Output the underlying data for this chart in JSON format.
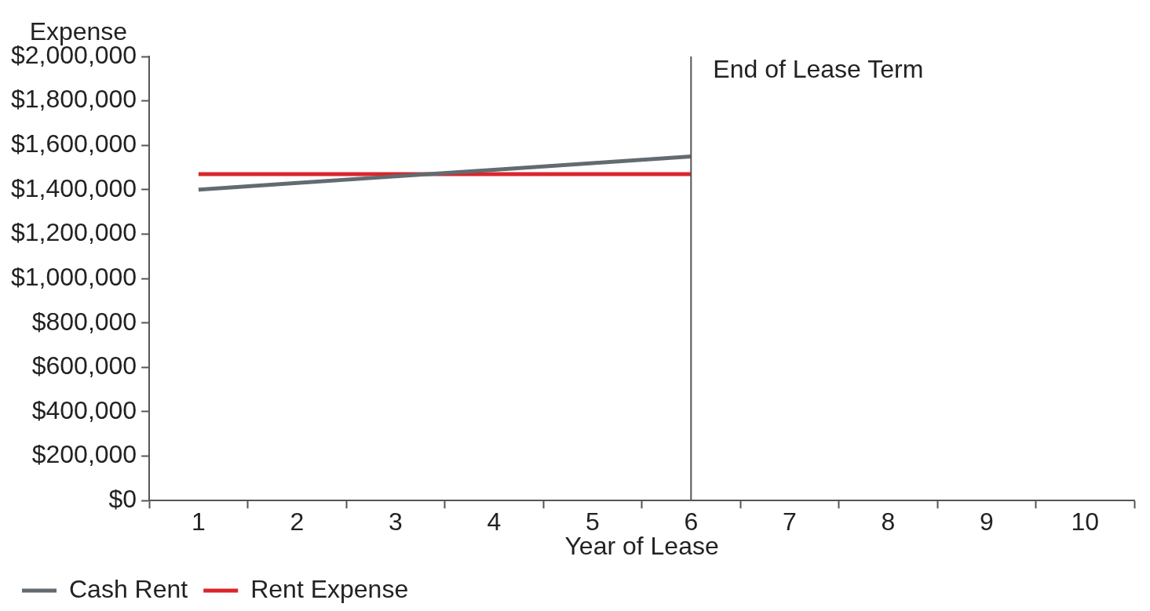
{
  "chart_data": {
    "type": "line",
    "ylabel": "Expense",
    "xlabel": "Year of Lease",
    "categories": [
      "1",
      "2",
      "3",
      "4",
      "5",
      "6",
      "7",
      "8",
      "9",
      "10"
    ],
    "series": [
      {
        "name": "Cash Rent",
        "color": "#636b70",
        "values": [
          1400000,
          1430000,
          1460000,
          1490000,
          1520000,
          1550000,
          null,
          null,
          null,
          null
        ]
      },
      {
        "name": "Rent Expense",
        "color": "#d9262b",
        "values": [
          1470000,
          1470000,
          1470000,
          1470000,
          1470000,
          1470000,
          null,
          null,
          null,
          null
        ]
      }
    ],
    "ylim": [
      0,
      2000000
    ],
    "yticks": [
      {
        "value": 0,
        "label": "$0"
      },
      {
        "value": 200000,
        "label": "$200,000"
      },
      {
        "value": 400000,
        "label": "$400,000"
      },
      {
        "value": 600000,
        "label": "$600,000"
      },
      {
        "value": 800000,
        "label": "$800,000"
      },
      {
        "value": 1000000,
        "label": "$1,000,000"
      },
      {
        "value": 1200000,
        "label": "$1,200,000"
      },
      {
        "value": 1400000,
        "label": "$1,400,000"
      },
      {
        "value": 1600000,
        "label": "$1,600,000"
      },
      {
        "value": 1800000,
        "label": "$1,800,000"
      },
      {
        "value": 2000000,
        "label": "$2,000,000"
      }
    ],
    "ref_lines": [
      {
        "axis": "x",
        "value": "6",
        "label": "End of Lease Term",
        "color": "#555555"
      }
    ],
    "grid": false,
    "legend": "bottom",
    "marker": "none",
    "line_style": "solid"
  }
}
